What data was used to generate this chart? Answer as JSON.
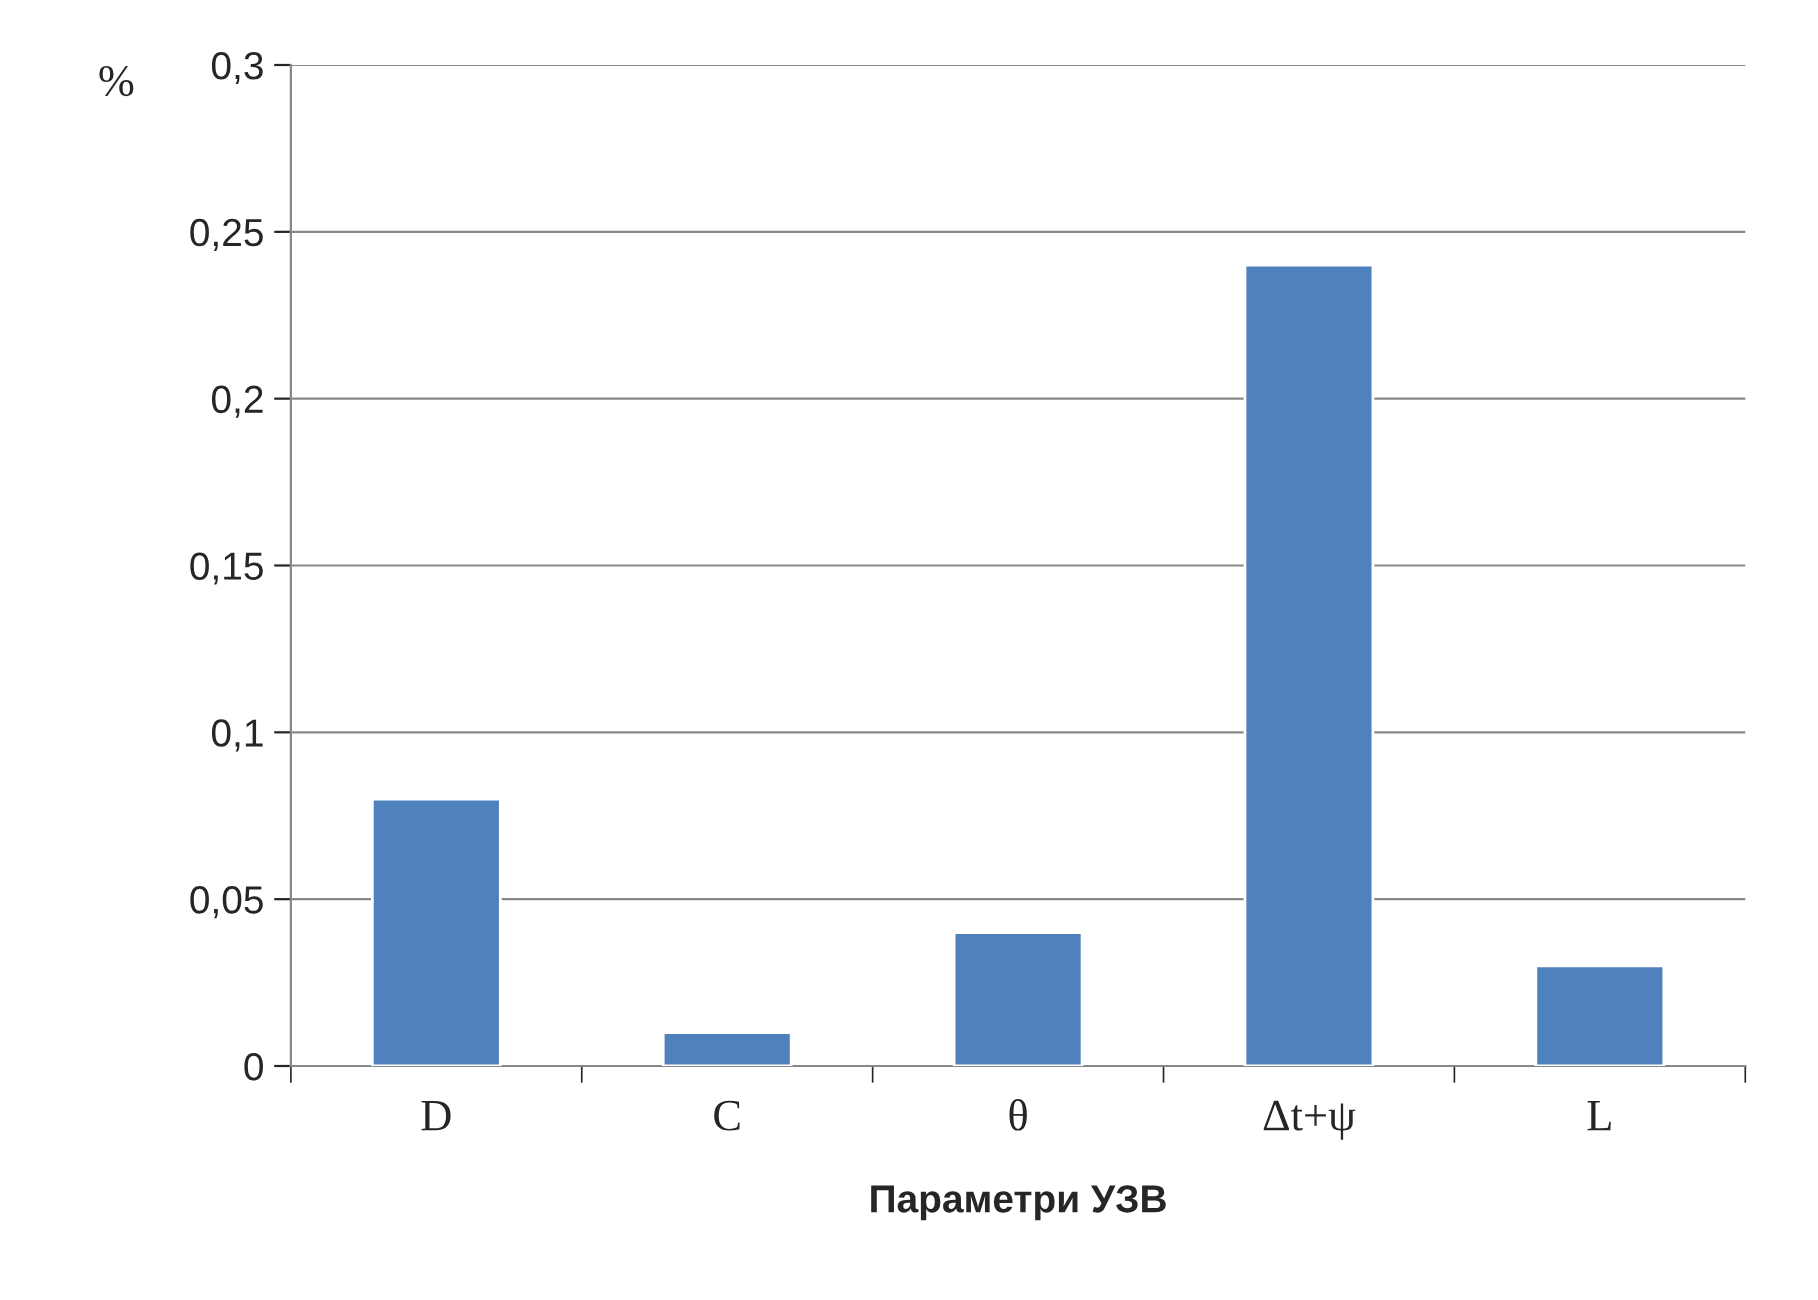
{
  "chart_data": {
    "type": "bar",
    "xlabel": "Параметри УЗВ",
    "ylabel": "%",
    "categories": [
      "D",
      "C",
      "θ",
      "Δt+ψ",
      "L"
    ],
    "values": [
      0.08,
      0.01,
      0.04,
      0.24,
      0.03
    ],
    "color": "#4f81bd",
    "ylim": [
      0,
      0.3
    ],
    "yticks": [
      {
        "value": 0,
        "label": "0"
      },
      {
        "value": 0.05,
        "label": "0,05"
      },
      {
        "value": 0.1,
        "label": "0,1"
      },
      {
        "value": 0.15,
        "label": "0,15"
      },
      {
        "value": 0.2,
        "label": "0,2"
      },
      {
        "value": 0.25,
        "label": "0,25"
      },
      {
        "value": 0.3,
        "label": "0,3"
      }
    ],
    "grid": "y",
    "legend": false
  }
}
